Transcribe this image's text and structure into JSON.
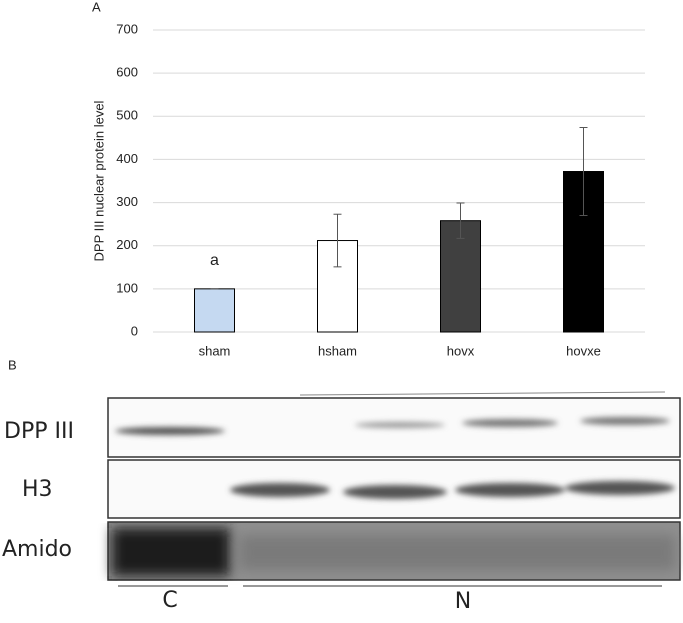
{
  "panels": [
    "A",
    "B"
  ],
  "chart_data": {
    "type": "bar",
    "ylabel": "DPP III nuclear protein level",
    "categories": [
      "sham",
      "hsham",
      "hovx",
      "hovxe"
    ],
    "values": [
      100,
      212,
      258,
      372
    ],
    "errors": [
      0,
      61,
      41,
      102
    ],
    "colors": [
      "#c5d9f1",
      "#ffffff",
      "#404040",
      "#000000"
    ],
    "annotation": "a",
    "ylim": [
      0,
      700
    ],
    "yticks": [
      0,
      100,
      200,
      300,
      400,
      500,
      600,
      700
    ],
    "grid": true
  },
  "blot": {
    "rows": [
      "DPP III",
      "H3",
      "Amido"
    ],
    "groups": [
      "C",
      "N"
    ]
  }
}
